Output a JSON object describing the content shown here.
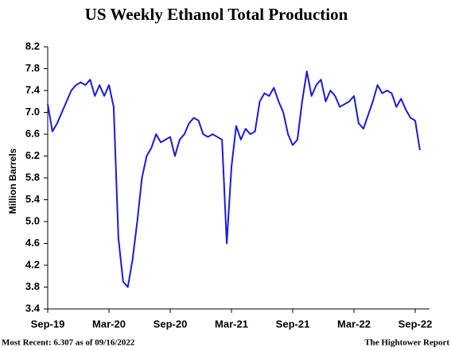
{
  "chart_data": {
    "type": "line",
    "title": "US Weekly Ethanol Total Production",
    "y_label": "Million Barrels",
    "footer_left": "Most Recent: 6.307 as of 09/16/2022",
    "footer_right": "The Hightower Report",
    "categories": [
      "Sep-19",
      null,
      null,
      null,
      null,
      null,
      null,
      null,
      null,
      null,
      null,
      null,
      null,
      "Mar-20",
      null,
      null,
      null,
      null,
      null,
      null,
      null,
      null,
      null,
      null,
      null,
      null,
      "Sep-20",
      null,
      null,
      null,
      null,
      null,
      null,
      null,
      null,
      null,
      null,
      null,
      null,
      "Mar-21",
      null,
      null,
      null,
      null,
      null,
      null,
      null,
      null,
      null,
      null,
      null,
      null,
      "Sep-21",
      null,
      null,
      null,
      null,
      null,
      null,
      null,
      null,
      null,
      null,
      null,
      null,
      "Mar-22",
      null,
      null,
      null,
      null,
      null,
      null,
      null,
      null,
      null,
      null,
      null,
      null,
      "Sep-22",
      null
    ],
    "series": [
      {
        "name": "Total Production",
        "color": "#1a1adb",
        "values": [
          7.15,
          6.65,
          6.8,
          7.0,
          7.2,
          7.4,
          7.5,
          7.55,
          7.5,
          7.6,
          7.3,
          7.5,
          7.3,
          7.5,
          7.1,
          4.7,
          3.9,
          3.8,
          4.3,
          5.0,
          5.8,
          6.2,
          6.35,
          6.6,
          6.45,
          6.5,
          6.55,
          6.2,
          6.5,
          6.6,
          6.8,
          6.9,
          6.85,
          6.6,
          6.55,
          6.6,
          6.55,
          6.5,
          4.6,
          6.0,
          6.75,
          6.5,
          6.7,
          6.6,
          6.65,
          7.2,
          7.35,
          7.3,
          7.45,
          7.2,
          7.0,
          6.6,
          6.4,
          6.5,
          7.2,
          7.75,
          7.3,
          7.5,
          7.6,
          7.2,
          7.4,
          7.3,
          7.1,
          7.15,
          7.2,
          7.3,
          6.8,
          6.7,
          6.95,
          7.2,
          7.5,
          7.35,
          7.4,
          7.35,
          7.1,
          7.25,
          7.05,
          6.9,
          6.85,
          6.307
        ]
      }
    ],
    "ylim": [
      3.4,
      8.2
    ],
    "yticks": [
      {
        "value": 3.4,
        "label": "3.4"
      },
      {
        "value": 3.8,
        "label": "3.8"
      },
      {
        "value": 4.2,
        "label": "4.2"
      },
      {
        "value": 4.6,
        "label": "4.6"
      },
      {
        "value": 5.0,
        "label": "5.0"
      },
      {
        "value": 5.4,
        "label": "5.4"
      },
      {
        "value": 5.8,
        "label": "5.8"
      },
      {
        "value": 6.2,
        "label": "6.2"
      },
      {
        "value": 6.6,
        "label": "6.6"
      },
      {
        "value": 7.0,
        "label": "7.0"
      },
      {
        "value": 7.4,
        "label": "7.4"
      },
      {
        "value": 7.8,
        "label": "7.8"
      },
      {
        "value": 8.2,
        "label": "8.2"
      }
    ],
    "grid": false
  }
}
